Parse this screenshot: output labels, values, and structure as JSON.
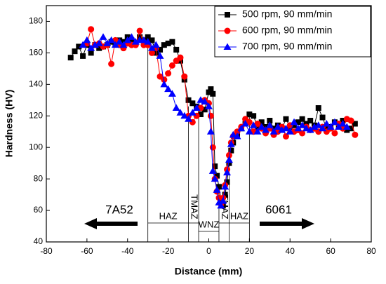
{
  "chart_data": {
    "type": "line",
    "xlabel": "Distance (mm)",
    "ylabel": "Hardness (HV)",
    "xlim": [
      -80,
      80
    ],
    "ylim": [
      40,
      190
    ],
    "xticks": [
      -80,
      -60,
      -40,
      -20,
      0,
      20,
      40,
      60,
      80
    ],
    "yticks": [
      40,
      60,
      80,
      100,
      120,
      140,
      160,
      180
    ],
    "legend": "upper right",
    "series": [
      {
        "name": "500 rpm, 90 mm/min",
        "color": "#000000",
        "marker": "square",
        "x": [
          -68,
          -66,
          -64,
          -62,
          -60,
          -58,
          -56,
          -54,
          -52,
          -50,
          -48,
          -46,
          -44,
          -42,
          -40,
          -38,
          -36,
          -34,
          -32,
          -30,
          -28,
          -26,
          -24,
          -22,
          -20,
          -18,
          -16,
          -14,
          -12,
          -10,
          -8,
          -6,
          -4,
          -2,
          0,
          1,
          2,
          3,
          4,
          5,
          6,
          7,
          8,
          9,
          10,
          11,
          12,
          14,
          16,
          18,
          20,
          22,
          24,
          26,
          28,
          30,
          32,
          34,
          36,
          38,
          40,
          42,
          44,
          46,
          48,
          50,
          52,
          54,
          56,
          58,
          60,
          62,
          64,
          66,
          68,
          70,
          72
        ],
        "values": [
          157,
          161,
          164,
          158,
          165,
          160,
          165,
          163,
          164,
          165,
          167,
          166,
          168,
          167,
          170,
          168,
          166,
          170,
          168,
          170,
          168,
          160,
          162,
          165,
          166,
          167,
          162,
          155,
          143,
          130,
          128,
          126,
          121,
          124,
          135,
          137,
          134,
          88,
          82,
          75,
          67,
          63,
          70,
          78,
          90,
          98,
          103,
          108,
          112,
          115,
          121,
          120,
          113,
          116,
          113,
          117,
          112,
          114,
          112,
          118,
          113,
          114,
          116,
          118,
          115,
          117,
          114,
          125,
          119,
          112,
          113,
          116,
          114,
          117,
          111,
          112,
          115
        ]
      },
      {
        "name": "600 rpm, 90 mm/min",
        "color": "#ff0000",
        "marker": "circle",
        "x": [
          -60,
          -58,
          -56,
          -54,
          -52,
          -50,
          -48,
          -46,
          -44,
          -42,
          -40,
          -38,
          -36,
          -34,
          -32,
          -30,
          -28,
          -26,
          -24,
          -22,
          -20,
          -18,
          -16,
          -14,
          -12,
          -10,
          -8,
          -6,
          -4,
          -2,
          0,
          1,
          2,
          3,
          4,
          5,
          6,
          7,
          8,
          9,
          10,
          11,
          12,
          14,
          16,
          18,
          20,
          22,
          24,
          26,
          28,
          30,
          32,
          34,
          36,
          38,
          40,
          42,
          44,
          46,
          48,
          50,
          52,
          54,
          56,
          58,
          60,
          62,
          64,
          66,
          68,
          70,
          72
        ],
        "values": [
          166,
          175,
          165,
          166,
          164,
          165,
          153,
          168,
          165,
          163,
          166,
          165,
          165,
          174,
          165,
          165,
          160,
          163,
          145,
          143,
          147,
          152,
          155,
          157,
          145,
          120,
          116,
          120,
          125,
          130,
          128,
          120,
          100,
          80,
          72,
          68,
          64,
          68,
          76,
          86,
          95,
          103,
          107,
          110,
          113,
          118,
          116,
          110,
          115,
          112,
          109,
          112,
          108,
          110,
          113,
          107,
          114,
          110,
          111,
          109,
          113,
          111,
          112,
          110,
          113,
          110,
          112,
          109,
          115,
          112,
          118,
          117,
          108
        ]
      },
      {
        "name": "700 rpm, 90 mm/min",
        "color": "#0000ff",
        "marker": "triangle",
        "x": [
          -62,
          -60,
          -58,
          -56,
          -54,
          -52,
          -50,
          -48,
          -46,
          -44,
          -42,
          -40,
          -38,
          -36,
          -34,
          -32,
          -30,
          -28,
          -26,
          -24,
          -22,
          -20,
          -18,
          -16,
          -14,
          -12,
          -10,
          -8,
          -6,
          -4,
          -2,
          0,
          1,
          2,
          3,
          4,
          5,
          6,
          7,
          8,
          9,
          10,
          11,
          12,
          14,
          16,
          18,
          20,
          22,
          24,
          26,
          28,
          30,
          32,
          34,
          36,
          38,
          40,
          42,
          44,
          46,
          48,
          50,
          52,
          54,
          56,
          58,
          60,
          62,
          64,
          66,
          68
        ],
        "values": [
          165,
          168,
          163,
          165,
          166,
          170,
          166,
          168,
          165,
          167,
          165,
          168,
          170,
          167,
          168,
          168,
          167,
          163,
          165,
          158,
          140,
          137,
          134,
          125,
          122,
          120,
          118,
          122,
          125,
          130,
          129,
          126,
          110,
          85,
          80,
          73,
          65,
          63,
          66,
          75,
          84,
          92,
          102,
          108,
          107,
          112,
          115,
          110,
          114,
          110,
          113,
          111,
          114,
          110,
          113,
          111,
          112,
          110,
          116,
          112,
          114,
          112,
          111,
          113,
          114,
          112,
          115,
          113,
          116,
          113,
          115,
          113
        ]
      }
    ],
    "zone_boundaries": [
      {
        "x": -30,
        "y": 170
      },
      {
        "x": -10,
        "y": 126
      },
      {
        "x": -5,
        "y": 126
      },
      {
        "x": 5,
        "y": 72
      },
      {
        "x": 10,
        "y": 96
      },
      {
        "x": 20,
        "y": 121
      }
    ],
    "zone_labels": [
      "HAZ",
      "TMAZ",
      "WNZ",
      "TMAZ",
      "HAZ"
    ],
    "materials": [
      "7A52",
      "6061"
    ]
  }
}
